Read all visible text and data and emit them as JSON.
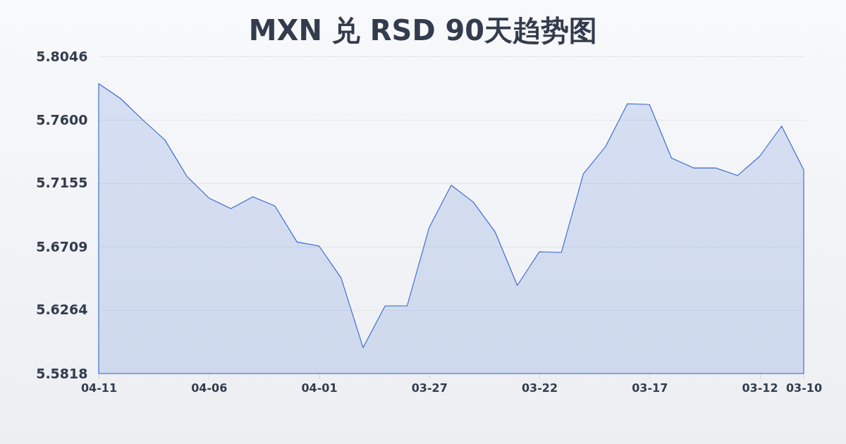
{
  "chart_data": {
    "type": "area",
    "title": "MXN 兑 RSD 90天趋势图",
    "x": [
      "--04-11",
      "--04-10",
      "--04-09",
      "--04-08",
      "--04-07",
      "--04-06",
      "--04-05",
      "--04-04",
      "--04-03",
      "--04-02",
      "--04-01",
      "--03-31",
      "--03-30",
      "--03-29",
      "--03-28",
      "--03-27",
      "--03-26",
      "--03-25",
      "--03-24",
      "--03-23",
      "--03-22",
      "--03-21",
      "--03-20",
      "--03-19",
      "--03-18",
      "--03-17",
      "--03-16",
      "--03-15",
      "--03-14",
      "--03-13",
      "--03-12",
      "--03-11",
      "--03-10"
    ],
    "values": [
      5.7854,
      5.7749,
      5.76,
      5.746,
      5.7204,
      5.7051,
      5.6977,
      5.7059,
      5.6995,
      5.6742,
      5.6714,
      5.6491,
      5.6,
      5.6293,
      5.6293,
      5.6843,
      5.7141,
      5.7023,
      5.6811,
      5.6437,
      5.6673,
      5.6668,
      5.7221,
      5.7411,
      5.7713,
      5.7708,
      5.7332,
      5.7262,
      5.7262,
      5.7209,
      5.7344,
      5.7556,
      5.7249
    ],
    "color": "#3366cc",
    "xlim": [
      "--04-11",
      "--03-10"
    ],
    "xticks": [
      {
        "value": "--04-11",
        "label": "04-11"
      },
      {
        "value": "--04-06",
        "label": "04-06"
      },
      {
        "value": "--04-01",
        "label": "04-01"
      },
      {
        "value": "--03-27",
        "label": "03-27"
      },
      {
        "value": "--03-22",
        "label": "03-22"
      },
      {
        "value": "--03-17",
        "label": "03-17"
      },
      {
        "value": "--03-12",
        "label": "03-12"
      },
      {
        "value": "--03-10",
        "label": "03-10"
      }
    ],
    "ylim": [
      5.5818,
      5.8046
    ],
    "yticks": [
      5.5818,
      5.6264,
      5.6709,
      5.7155,
      {
        "value": 5.76,
        "label": "5.7600"
      },
      5.8046
    ],
    "grid": "y"
  }
}
